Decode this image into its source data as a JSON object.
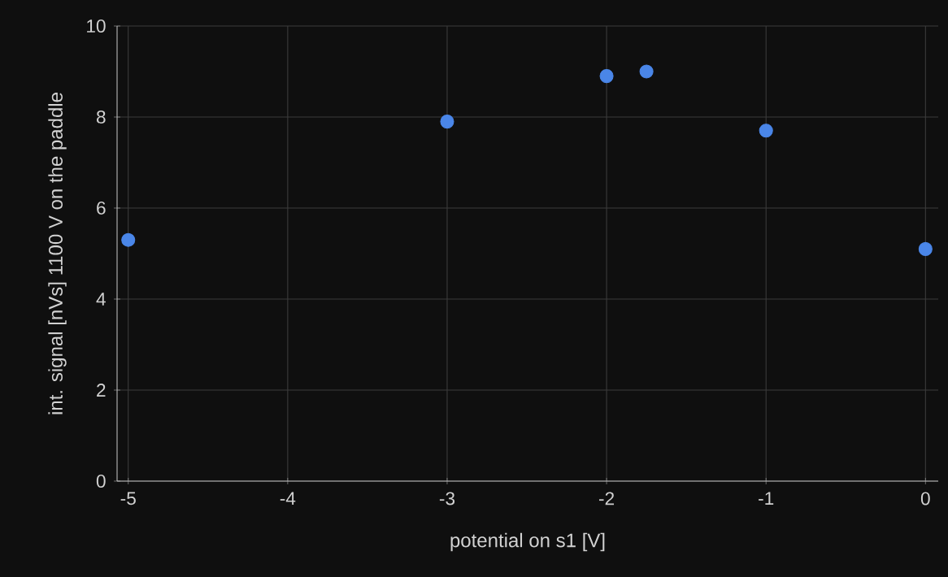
{
  "chart_data": {
    "type": "scatter",
    "xlabel": "potential on s1 [V]",
    "ylabel": "int. signal [nVs] 1100 V on the paddle",
    "x": [
      -5,
      -3,
      -2,
      -1.75,
      -1,
      0
    ],
    "series": [
      {
        "color": "#4a86e8",
        "values": [
          5.3,
          7.9,
          8.9,
          9.0,
          7.7,
          5.1
        ]
      }
    ],
    "xlim": [
      -5.07,
      0.08
    ],
    "xticks": [
      -5,
      -4,
      -3,
      -2,
      -1,
      0
    ],
    "ylim": [
      0,
      10
    ],
    "yticks": [
      0,
      2,
      4,
      6,
      8,
      10
    ],
    "grid": true,
    "marker": "circle"
  }
}
